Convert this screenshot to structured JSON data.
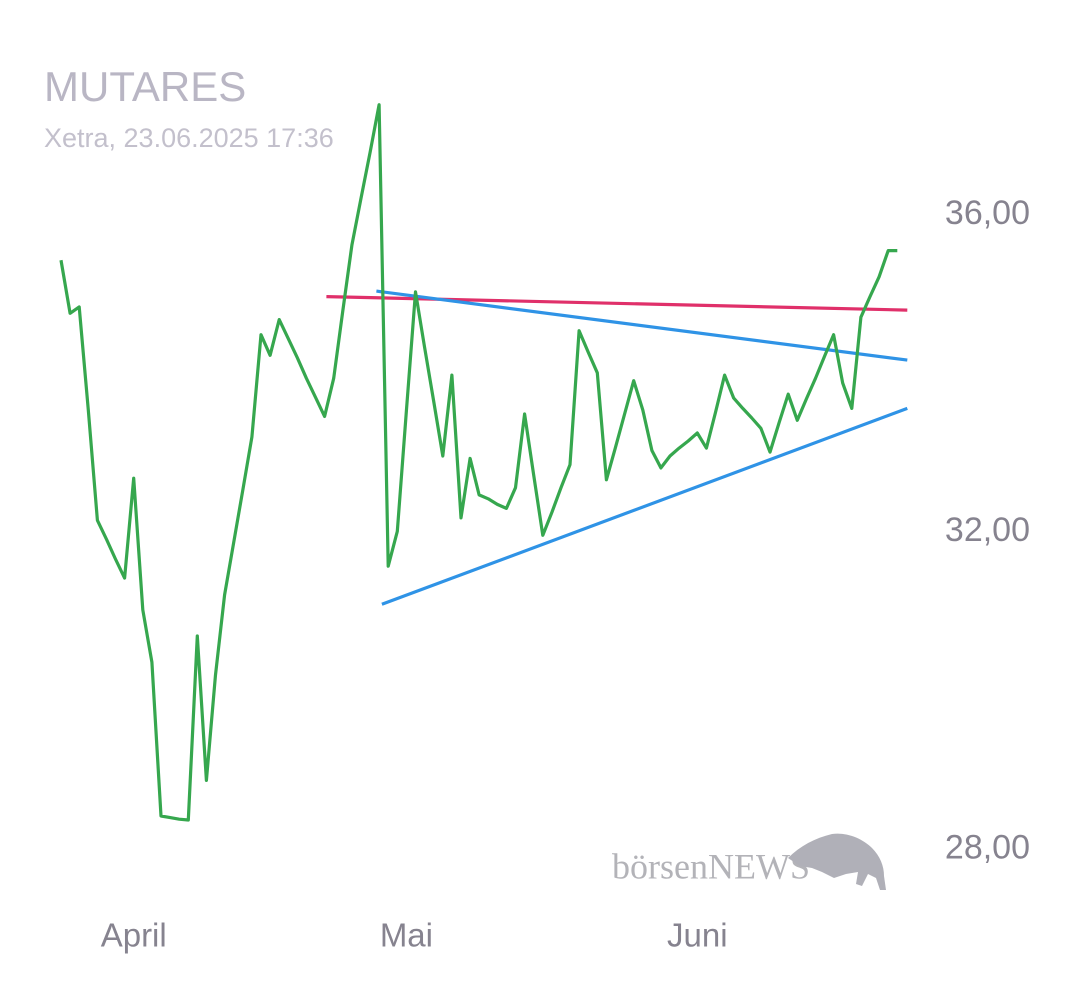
{
  "chart_data": {
    "type": "line",
    "title": "MUTARES",
    "subtitle": "Xetra, 23.06.2025 17:36",
    "watermark": "börsenNEWS",
    "categories": [
      null,
      null,
      null,
      null,
      null,
      null,
      null,
      null,
      "April",
      null,
      null,
      null,
      null,
      null,
      null,
      null,
      null,
      null,
      null,
      null,
      null,
      null,
      null,
      null,
      null,
      null,
      null,
      null,
      null,
      null,
      null,
      null,
      null,
      null,
      null,
      null,
      null,
      null,
      "Mai",
      null,
      null,
      null,
      null,
      null,
      null,
      null,
      null,
      null,
      null,
      null,
      null,
      null,
      null,
      null,
      null,
      null,
      null,
      null,
      null,
      null,
      null,
      null,
      null,
      null,
      null,
      null,
      null,
      null,
      null,
      null,
      "Juni",
      null,
      null,
      null,
      null,
      null,
      null,
      null,
      null,
      null,
      null,
      null,
      null,
      null,
      null,
      null,
      null,
      null,
      null,
      null,
      null,
      null,
      null
    ],
    "series": [
      {
        "color": "#36a74e",
        "values": [
          35.43,
          34.76,
          34.84,
          33.54,
          32.15,
          31.91,
          31.66,
          31.42,
          32.68,
          31.02,
          30.36,
          28.42,
          28.4,
          28.38,
          28.37,
          30.69,
          28.87,
          30.2,
          31.21,
          31.87,
          32.53,
          33.2,
          34.49,
          34.23,
          34.68,
          34.44,
          34.2,
          33.94,
          33.7,
          33.46,
          33.94,
          34.79,
          35.62,
          36.21,
          36.79,
          37.39,
          31.57,
          32.01,
          33.53,
          35.03,
          34.33,
          33.65,
          32.96,
          33.98,
          32.18,
          32.93,
          32.47,
          32.42,
          32.35,
          32.3,
          32.56,
          33.49,
          32.72,
          31.96,
          32.25,
          32.56,
          32.85,
          34.54,
          34.27,
          34.01,
          32.66,
          33.07,
          33.49,
          33.91,
          33.54,
          33.03,
          32.81,
          32.96,
          33.06,
          33.15,
          33.25,
          33.06,
          33.51,
          33.98,
          33.69,
          33.56,
          33.44,
          33.31,
          33.01,
          33.38,
          33.74,
          33.41,
          33.68,
          33.94,
          34.22,
          34.49,
          33.88,
          33.56,
          34.71,
          34.97,
          35.22,
          35.55,
          35.55
        ]
      }
    ],
    "trendlines": [
      {
        "color": "#e0306a",
        "x": [
          29.2,
          93.1
        ],
        "values": [
          34.97,
          34.8
        ]
      },
      {
        "color": "#2f93e6",
        "x": [
          34.7,
          93.1
        ],
        "values": [
          35.04,
          34.17
        ]
      },
      {
        "color": "#2f93e6",
        "x": [
          35.3,
          93.1
        ],
        "values": [
          31.09,
          33.56
        ]
      }
    ],
    "ylim": [
      27.5,
      37.5
    ],
    "yticks": [
      {
        "value": 28,
        "label": "28,00"
      },
      {
        "value": 32,
        "label": "32,00"
      },
      {
        "value": 36,
        "label": "36,00"
      }
    ],
    "grid": false
  }
}
